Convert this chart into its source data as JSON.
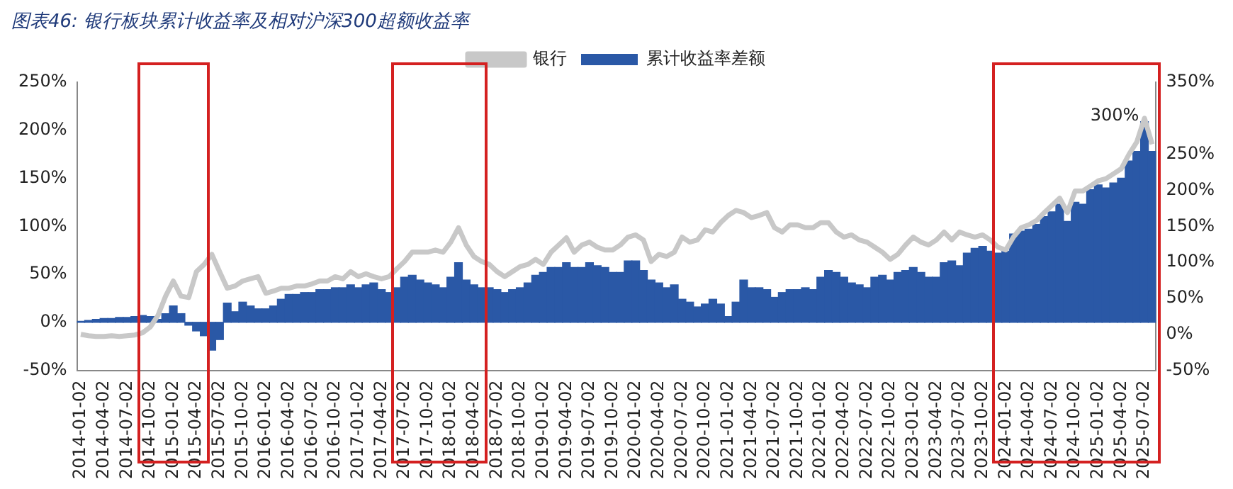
{
  "chart_data": {
    "type": "bar",
    "title": "图表46: 银行板块累计收益率及相对沪深300超额收益率",
    "categories": [
      "2014-01-02",
      null,
      null,
      "2014-04-02",
      null,
      null,
      "2014-07-02",
      null,
      null,
      "2014-10-02",
      null,
      null,
      "2015-01-02",
      null,
      null,
      "2015-04-02",
      null,
      null,
      "2015-07-02",
      null,
      null,
      "2015-10-02",
      null,
      null,
      "2016-01-02",
      null,
      null,
      "2016-04-02",
      null,
      null,
      "2016-07-02",
      null,
      null,
      "2016-10-02",
      null,
      null,
      "2017-01-02",
      null,
      null,
      "2017-04-02",
      null,
      null,
      "2017-07-02",
      null,
      null,
      "2017-10-02",
      null,
      null,
      "2018-01-02",
      null,
      null,
      "2018-04-02",
      null,
      null,
      "2018-07-02",
      null,
      null,
      "2018-10-02",
      null,
      null,
      "2019-01-02",
      null,
      null,
      "2019-04-02",
      null,
      null,
      "2019-07-02",
      null,
      null,
      "2019-10-02",
      null,
      null,
      "2020-01-02",
      null,
      null,
      "2020-04-02",
      null,
      null,
      "2020-07-02",
      null,
      null,
      "2020-10-02",
      null,
      null,
      "2021-01-02",
      null,
      null,
      "2021-04-02",
      null,
      null,
      "2021-07-02",
      null,
      null,
      "2021-10-02",
      null,
      null,
      "2022-01-02",
      null,
      null,
      "2022-04-02",
      null,
      null,
      "2022-07-02",
      null,
      null,
      "2022-10-02",
      null,
      null,
      "2023-01-02",
      null,
      null,
      "2023-04-02",
      null,
      null,
      "2023-07-02",
      null,
      null,
      "2023-10-02",
      null,
      null,
      "2024-01-02",
      null,
      null,
      "2024-04-02",
      null,
      null,
      "2024-07-02",
      null,
      null,
      "2024-10-02",
      null,
      null,
      "2025-01-02",
      null,
      null,
      "2025-04-02",
      null,
      null,
      "2025-07-02",
      null
    ],
    "series": [
      {
        "name": "累计收益率差额",
        "color": "#2a58a6",
        "values": [
          1,
          2,
          3,
          4,
          4,
          5,
          5,
          6,
          7,
          6,
          3,
          9,
          17,
          9,
          -3,
          -9,
          -14,
          -29,
          -18,
          20,
          11,
          21,
          17,
          14,
          14,
          17,
          24,
          29,
          29,
          31,
          31,
          34,
          34,
          36,
          36,
          39,
          36,
          39,
          41,
          34,
          31,
          36,
          47,
          49,
          44,
          41,
          39,
          36,
          47,
          62,
          44,
          39,
          36,
          36,
          34,
          31,
          34,
          36,
          41,
          49,
          52,
          57,
          57,
          62,
          57,
          57,
          62,
          59,
          57,
          52,
          52,
          64,
          64,
          54,
          44,
          41,
          36,
          39,
          24,
          21,
          16,
          19,
          24,
          19,
          6,
          21,
          44,
          36,
          36,
          34,
          26,
          31,
          34,
          34,
          36,
          34,
          47,
          54,
          52,
          47,
          41,
          39,
          36,
          47,
          49,
          44,
          52,
          54,
          57,
          52,
          47,
          47,
          62,
          64,
          59,
          72,
          77,
          79,
          74,
          72,
          74,
          92,
          95,
          97,
          102,
          110,
          115,
          123,
          105,
          125,
          123,
          138,
          143,
          140,
          145,
          150,
          168,
          178,
          209,
          178
        ]
      },
      {
        "name": "银行",
        "type": "line",
        "axis": "y2",
        "color": "#c8c8c8",
        "values": [
          0,
          -2,
          -3,
          -3,
          -2,
          -3,
          -2,
          -1,
          2,
          10,
          26,
          53,
          74,
          53,
          51,
          87,
          97,
          111,
          87,
          64,
          67,
          74,
          77,
          80,
          57,
          60,
          64,
          64,
          67,
          67,
          70,
          74,
          74,
          80,
          77,
          87,
          80,
          84,
          80,
          77,
          80,
          91,
          101,
          114,
          114,
          114,
          117,
          114,
          128,
          148,
          124,
          108,
          101,
          97,
          87,
          80,
          87,
          94,
          97,
          104,
          97,
          114,
          124,
          134,
          114,
          124,
          128,
          121,
          117,
          117,
          124,
          135,
          138,
          131,
          101,
          111,
          108,
          114,
          135,
          128,
          131,
          145,
          142,
          155,
          165,
          172,
          169,
          162,
          165,
          169,
          148,
          142,
          152,
          152,
          148,
          148,
          155,
          155,
          142,
          135,
          138,
          131,
          128,
          121,
          114,
          104,
          111,
          124,
          135,
          128,
          124,
          131,
          142,
          131,
          142,
          138,
          135,
          138,
          131,
          121,
          117,
          135,
          148,
          152,
          158,
          169,
          179,
          189,
          169,
          199,
          199,
          206,
          213,
          216,
          223,
          230,
          250,
          267,
          300,
          264
        ]
      }
    ],
    "ylim": [
      -50,
      250
    ],
    "yticks": [
      {
        "value": -50,
        "label": "-50%"
      },
      {
        "value": 0,
        "label": "0%"
      },
      {
        "value": 50,
        "label": "50%"
      },
      {
        "value": 100,
        "label": "100%"
      },
      {
        "value": 150,
        "label": "150%"
      },
      {
        "value": 200,
        "label": "200%"
      },
      {
        "value": 250,
        "label": "250%"
      }
    ],
    "y2lim": [
      -50,
      350
    ],
    "y2ticks": [
      {
        "value": -50,
        "label": "-50%"
      },
      {
        "value": 0,
        "label": "0%"
      },
      {
        "value": 50,
        "label": "50%"
      },
      {
        "value": 100,
        "label": "100%"
      },
      {
        "value": 150,
        "label": "150%"
      },
      {
        "value": 200,
        "label": "200%"
      },
      {
        "value": 250,
        "label": "250%"
      },
      {
        "value": 350,
        "label": "350%"
      }
    ],
    "annotations": [
      "300%"
    ],
    "legend": "top",
    "grid": false
  }
}
